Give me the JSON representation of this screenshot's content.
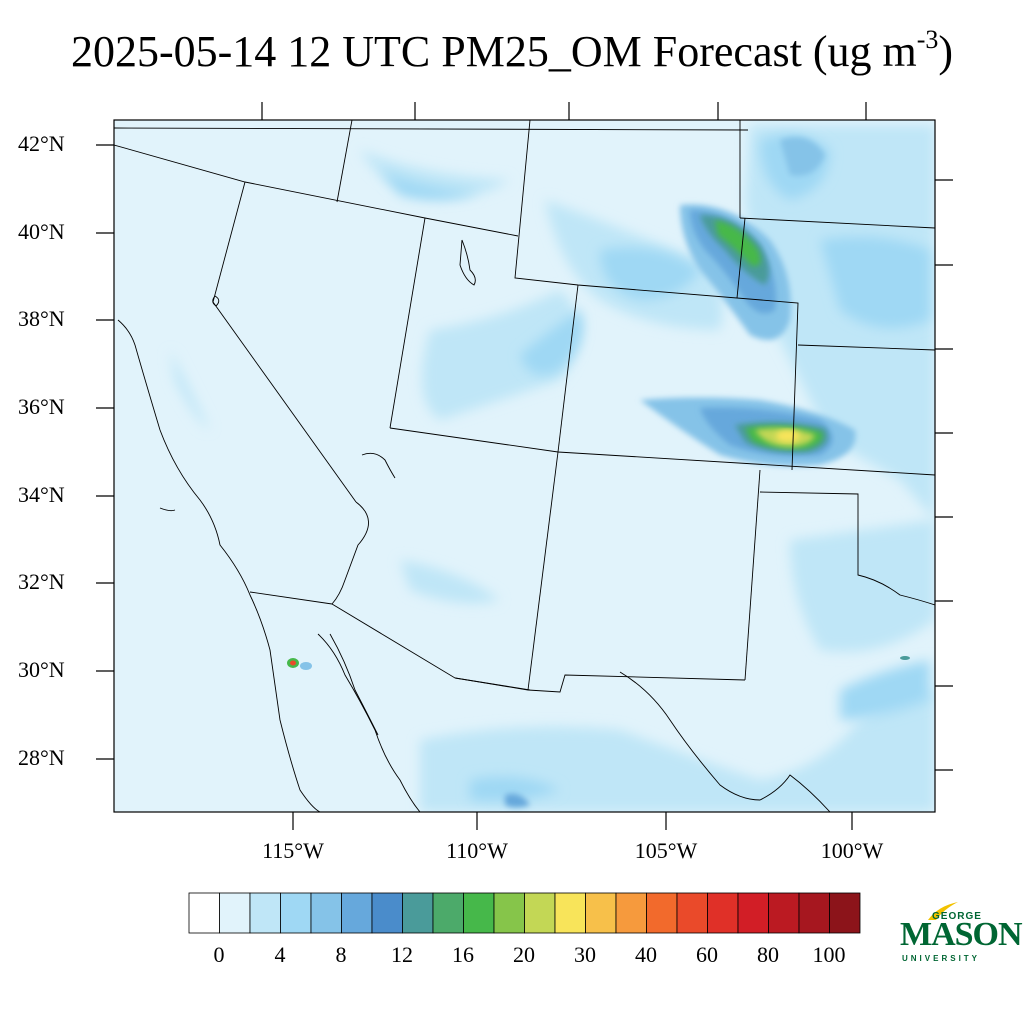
{
  "title": {
    "main": "2025-05-14 12 UTC PM25_OM Forecast (ug m",
    "exp": "-3",
    "close": ")"
  },
  "latitude_labels": [
    "42°N",
    "40°N",
    "38°N",
    "36°N",
    "34°N",
    "32°N",
    "30°N",
    "28°N"
  ],
  "longitude_labels": [
    "115°W",
    "110°W",
    "105°W",
    "100°W"
  ],
  "colorbar": {
    "labels": [
      "0",
      "4",
      "8",
      "12",
      "16",
      "20",
      "30",
      "40",
      "60",
      "80",
      "100"
    ],
    "colors": [
      "#ffffff",
      "#e1f3fb",
      "#bfe6f7",
      "#9fd8f4",
      "#85c3e8",
      "#66a8dc",
      "#4a8ccb",
      "#4a9b9a",
      "#4caa6a",
      "#46b84a",
      "#86c54a",
      "#c3d755",
      "#f8e45a",
      "#f7c04a",
      "#f69a3d",
      "#f26a2c",
      "#ea4a2a",
      "#e03028",
      "#d21e26",
      "#bb1a22",
      "#a6171f",
      "#8c141a"
    ]
  },
  "logo": {
    "line1": "GEORGE",
    "line2": "MASON",
    "line3": "UNIVERSITY",
    "color": "#006633",
    "accent": "#f2c200"
  }
}
